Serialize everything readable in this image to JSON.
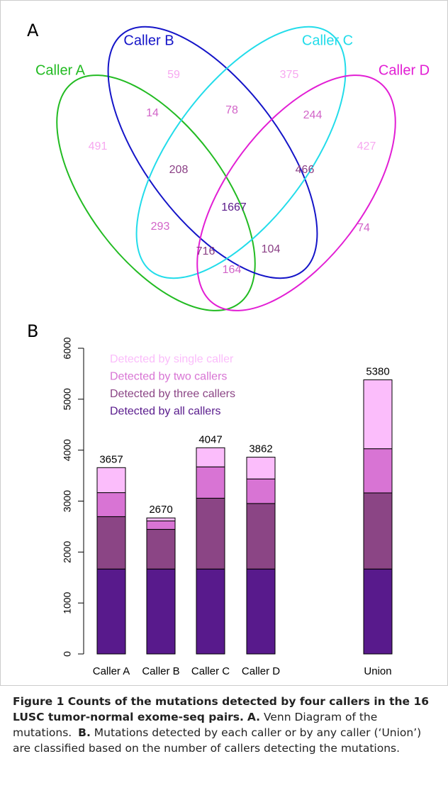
{
  "venn": {
    "panel": "A",
    "sets": [
      {
        "name": "Caller A",
        "color": "#22bb22"
      },
      {
        "name": "Caller B",
        "color": "#1414c8"
      },
      {
        "name": "Caller C",
        "color": "#22dcea"
      },
      {
        "name": "Caller D",
        "color": "#e21ed4"
      }
    ],
    "regions": [
      {
        "value": 491,
        "color": "#f7a8f0"
      },
      {
        "value": 59,
        "color": "#f7a8f0"
      },
      {
        "value": 375,
        "color": "#f7a8f0"
      },
      {
        "value": 427,
        "color": "#f7a8f0"
      },
      {
        "value": 14,
        "color": "#d264c8"
      },
      {
        "value": 78,
        "color": "#d264c8"
      },
      {
        "value": 244,
        "color": "#d264c8"
      },
      {
        "value": 208,
        "color": "#8a3f85"
      },
      {
        "value": 466,
        "color": "#8a3f85"
      },
      {
        "value": 1667,
        "color": "#5a1a8a"
      },
      {
        "value": 293,
        "color": "#d264c8"
      },
      {
        "value": 74,
        "color": "#d264c8"
      },
      {
        "value": 716,
        "color": "#8a3f85"
      },
      {
        "value": 104,
        "color": "#8a3f85"
      },
      {
        "value": 164,
        "color": "#d264c8"
      }
    ]
  },
  "chart_data": {
    "type": "bar",
    "stacked": true,
    "panel": "B",
    "categories": [
      "Caller A",
      "Caller B",
      "Caller C",
      "Caller D",
      "Union"
    ],
    "series": [
      {
        "name": "Detected by all callers",
        "color": "#581a8c",
        "values": [
          1667,
          1667,
          1667,
          1667,
          1667
        ]
      },
      {
        "name": "Detected by three callers",
        "color": "#8b4585",
        "values": [
          1028,
          778,
          1390,
          1286,
          1494
        ]
      },
      {
        "name": "Detected by two callers",
        "color": "#d874d4",
        "values": [
          471,
          166,
          615,
          482,
          867
        ]
      },
      {
        "name": "Detected by single caller",
        "color": "#fbbdfb",
        "values": [
          491,
          59,
          375,
          427,
          1352
        ]
      }
    ],
    "totals": [
      3657,
      2670,
      4047,
      3862,
      5380
    ],
    "ylim": [
      0,
      6000
    ],
    "yticks": [
      0,
      1000,
      2000,
      3000,
      4000,
      5000,
      6000
    ],
    "grid": false,
    "legend": "top-left"
  },
  "caption": {
    "title": "Figure 1 Counts of the mutations detected by four callers in the 16 LUSC tumor-normal exome-seq pairs.",
    "parts": [
      {
        "label": "A.",
        "text": "Venn Diagram of the mutations."
      },
      {
        "label": "B.",
        "text": "Mutations detected by each caller or by any caller (‘Union’) are classified based on the number of callers detecting the mutations."
      }
    ]
  }
}
